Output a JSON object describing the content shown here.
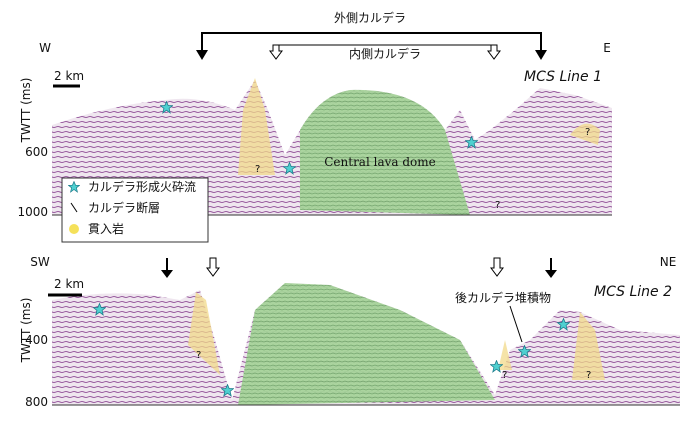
{
  "header": {
    "outer_caldera": "外側カルデラ",
    "inner_caldera": "内側カルデラ"
  },
  "panel1": {
    "west": "W",
    "east": "E",
    "y_axis_label": "TWTT (ms)",
    "yticks": [
      "600",
      "1000"
    ],
    "scale": "2 km",
    "line_label": "MCS Line 1",
    "dome_label": "Central lava dome",
    "uncertain": "?"
  },
  "panel2": {
    "west": "SW",
    "east": "NE",
    "y_axis_label": "TWTT (ms)",
    "yticks": [
      "400",
      "800"
    ],
    "scale": "2 km",
    "line_label": "MCS Line 2",
    "sediment_label": "後カルデラ堆積物",
    "uncertain": "?"
  },
  "legend": {
    "items": [
      "カルデラ形成火砕流",
      "カルデラ断層",
      "貫入岩"
    ]
  }
}
